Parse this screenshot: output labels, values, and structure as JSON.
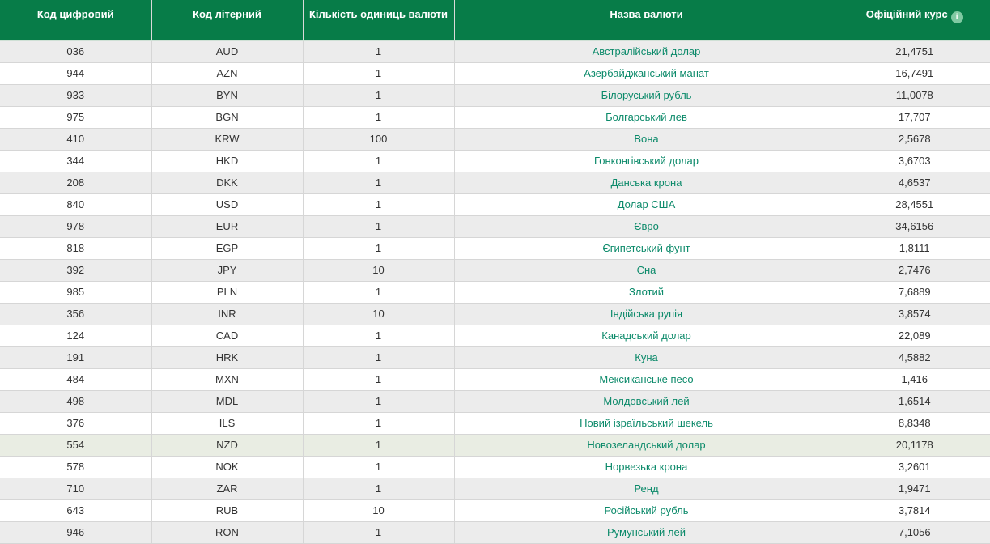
{
  "table": {
    "columns": [
      {
        "label": "Код цифровий"
      },
      {
        "label": "Код літерний"
      },
      {
        "label": "Кількість одиниць валюти"
      },
      {
        "label": "Назва валюти"
      },
      {
        "label": "Офіційний курс",
        "info_icon": "i"
      }
    ],
    "rows": [
      {
        "digital_code": "036",
        "letter_code": "AUD",
        "units": "1",
        "name": "Австралійський долар",
        "rate": "21,4751",
        "highlighted": false
      },
      {
        "digital_code": "944",
        "letter_code": "AZN",
        "units": "1",
        "name": "Азербайджанський манат",
        "rate": "16,7491",
        "highlighted": false
      },
      {
        "digital_code": "933",
        "letter_code": "BYN",
        "units": "1",
        "name": "Білоруський рубль",
        "rate": "11,0078",
        "highlighted": false
      },
      {
        "digital_code": "975",
        "letter_code": "BGN",
        "units": "1",
        "name": "Болгарський лев",
        "rate": "17,707",
        "highlighted": false
      },
      {
        "digital_code": "410",
        "letter_code": "KRW",
        "units": "100",
        "name": "Вона",
        "rate": "2,5678",
        "highlighted": false
      },
      {
        "digital_code": "344",
        "letter_code": "HKD",
        "units": "1",
        "name": "Гонконгівський долар",
        "rate": "3,6703",
        "highlighted": false
      },
      {
        "digital_code": "208",
        "letter_code": "DKK",
        "units": "1",
        "name": "Данська крона",
        "rate": "4,6537",
        "highlighted": false
      },
      {
        "digital_code": "840",
        "letter_code": "USD",
        "units": "1",
        "name": "Долар США",
        "rate": "28,4551",
        "highlighted": false
      },
      {
        "digital_code": "978",
        "letter_code": "EUR",
        "units": "1",
        "name": "Євро",
        "rate": "34,6156",
        "highlighted": false
      },
      {
        "digital_code": "818",
        "letter_code": "EGP",
        "units": "1",
        "name": "Єгипетський фунт",
        "rate": "1,8111",
        "highlighted": false
      },
      {
        "digital_code": "392",
        "letter_code": "JPY",
        "units": "10",
        "name": "Єна",
        "rate": "2,7476",
        "highlighted": false
      },
      {
        "digital_code": "985",
        "letter_code": "PLN",
        "units": "1",
        "name": "Злотий",
        "rate": "7,6889",
        "highlighted": false
      },
      {
        "digital_code": "356",
        "letter_code": "INR",
        "units": "10",
        "name": "Індійська рупія",
        "rate": "3,8574",
        "highlighted": false
      },
      {
        "digital_code": "124",
        "letter_code": "CAD",
        "units": "1",
        "name": "Канадський долар",
        "rate": "22,089",
        "highlighted": false
      },
      {
        "digital_code": "191",
        "letter_code": "HRK",
        "units": "1",
        "name": "Куна",
        "rate": "4,5882",
        "highlighted": false
      },
      {
        "digital_code": "484",
        "letter_code": "MXN",
        "units": "1",
        "name": "Мексиканське песо",
        "rate": "1,416",
        "highlighted": false
      },
      {
        "digital_code": "498",
        "letter_code": "MDL",
        "units": "1",
        "name": "Молдовський лей",
        "rate": "1,6514",
        "highlighted": false
      },
      {
        "digital_code": "376",
        "letter_code": "ILS",
        "units": "1",
        "name": "Новий ізраїльський шекель",
        "rate": "8,8348",
        "highlighted": false
      },
      {
        "digital_code": "554",
        "letter_code": "NZD",
        "units": "1",
        "name": "Новозеландський долар",
        "rate": "20,1178",
        "highlighted": true
      },
      {
        "digital_code": "578",
        "letter_code": "NOK",
        "units": "1",
        "name": "Норвезька крона",
        "rate": "3,2601",
        "highlighted": false
      },
      {
        "digital_code": "710",
        "letter_code": "ZAR",
        "units": "1",
        "name": "Ренд",
        "rate": "1,9471",
        "highlighted": false
      },
      {
        "digital_code": "643",
        "letter_code": "RUB",
        "units": "10",
        "name": "Російський рубль",
        "rate": "3,7814",
        "highlighted": false
      },
      {
        "digital_code": "946",
        "letter_code": "RON",
        "units": "1",
        "name": "Румунський лей",
        "rate": "7,1056",
        "highlighted": false
      }
    ]
  },
  "colors": {
    "header_bg": "#077C48",
    "header_text": "#ffffff",
    "zebra_row_bg": "#ececec",
    "highlight_row_bg": "#e9ede3",
    "border": "#d6d6d6",
    "link": "#0c8a6a",
    "body_text": "#333333",
    "info_icon_bg": "#7fc9a2"
  }
}
